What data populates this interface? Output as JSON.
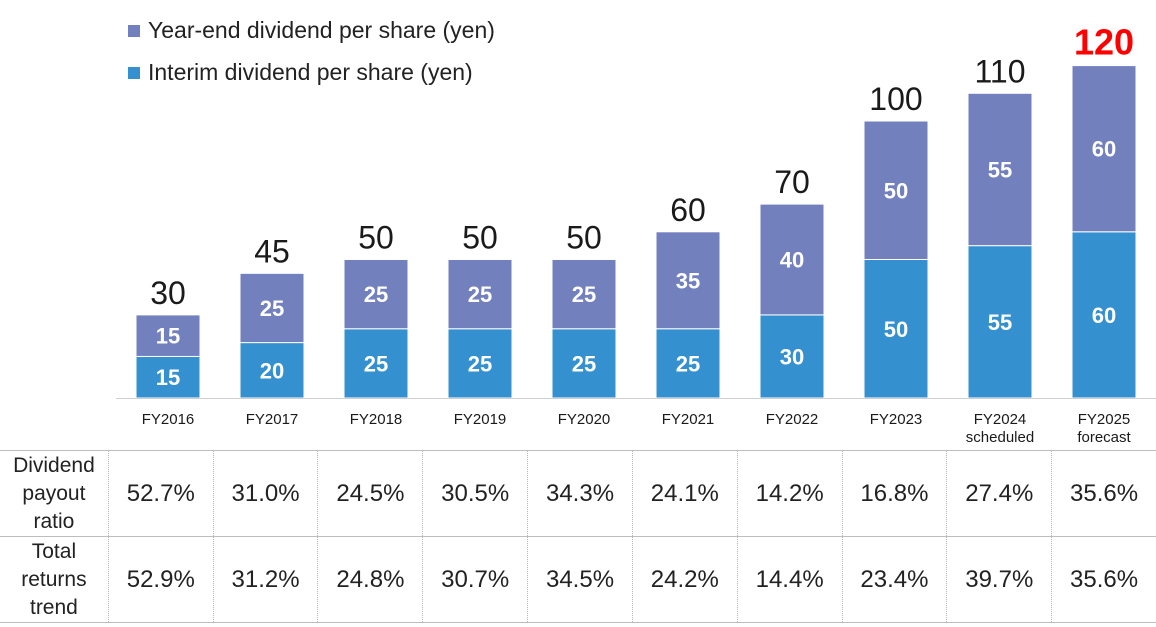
{
  "chart_data": {
    "type": "bar",
    "stacked": true,
    "categories": [
      "FY2016",
      "FY2017",
      "FY2018",
      "FY2019",
      "FY2020",
      "FY2021",
      "FY2022",
      "FY2023",
      "FY2024\nscheduled",
      "FY2025\nforecast"
    ],
    "series": [
      {
        "name": "Interim dividend per share (yen)",
        "color": "#3590cf",
        "values": [
          15,
          20,
          25,
          25,
          25,
          25,
          30,
          50,
          55,
          60
        ]
      },
      {
        "name": "Year-end dividend per share (yen)",
        "color": "#7380be",
        "values": [
          15,
          25,
          25,
          25,
          25,
          35,
          40,
          50,
          55,
          60
        ]
      }
    ],
    "totals": [
      30,
      45,
      50,
      50,
      50,
      60,
      70,
      100,
      110,
      120
    ],
    "highlight_total_color": "#ff0000",
    "ylim": [
      0,
      120
    ]
  },
  "legend": [
    {
      "label": "Year-end dividend per share (yen)",
      "color": "#7380be"
    },
    {
      "label": "Interim dividend per share (yen)",
      "color": "#3590cf"
    }
  ],
  "table": {
    "rows": [
      {
        "header": "Dividend payout ratio",
        "values": [
          "52.7%",
          "31.0%",
          "24.5%",
          "30.5%",
          "34.3%",
          "24.1%",
          "14.2%",
          "16.8%",
          "27.4%",
          "35.6%"
        ]
      },
      {
        "header": "Total returns trend",
        "values": [
          "52.9%",
          "31.2%",
          "24.8%",
          "30.7%",
          "34.5%",
          "24.2%",
          "14.4%",
          "23.4%",
          "39.7%",
          "35.6%"
        ]
      }
    ]
  }
}
